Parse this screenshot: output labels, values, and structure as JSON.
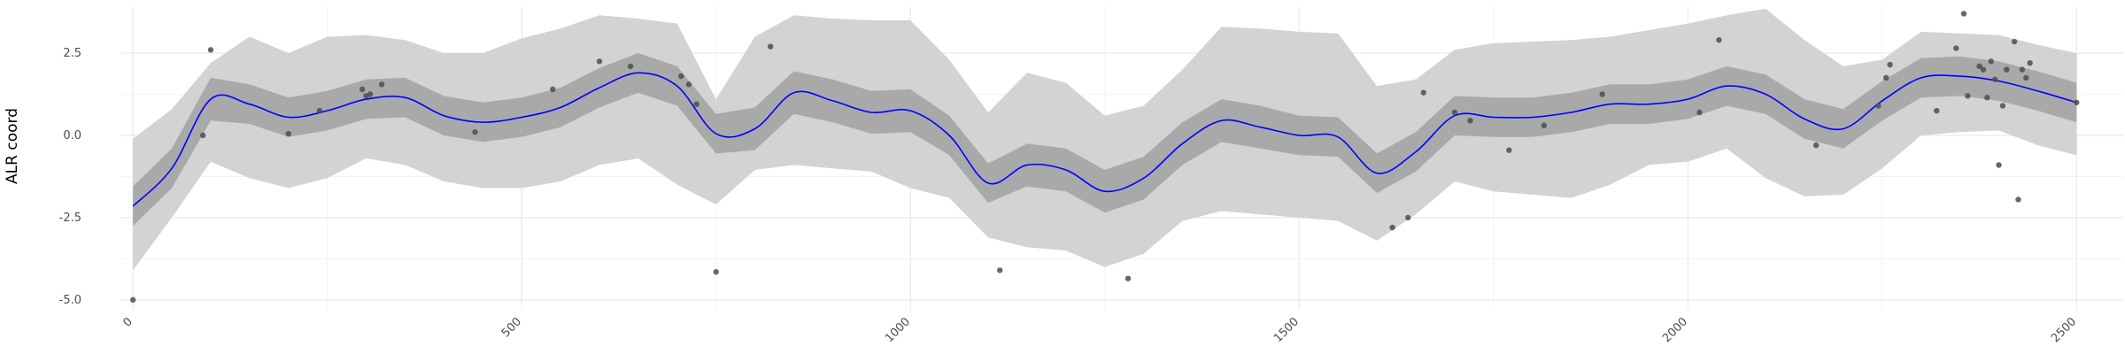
{
  "chart_data": {
    "type": "line",
    "ylabel": "ALR coord",
    "xlabel": "",
    "xlim": [
      -15,
      2560
    ],
    "ylim": [
      -5.3,
      3.9
    ],
    "x_ticks": [
      {
        "value": 0,
        "label": "0"
      },
      {
        "value": 500,
        "label": "500"
      },
      {
        "value": 1000,
        "label": "1000"
      },
      {
        "value": 1500,
        "label": "1500"
      },
      {
        "value": 2000,
        "label": "2000"
      },
      {
        "value": 2500,
        "label": "2500"
      }
    ],
    "y_ticks": [
      {
        "value": -5.0,
        "label": "-5.0"
      },
      {
        "value": -2.5,
        "label": "-2.5"
      },
      {
        "value": 0.0,
        "label": "0.0"
      },
      {
        "value": 2.5,
        "label": "2.5"
      }
    ],
    "grid": true,
    "colors": {
      "line": "#0000ff",
      "inner_band": "#a9a9a9",
      "outer_band": "#d3d3d3",
      "points": "#4d4d4d",
      "grid_major": "#e5e5e5",
      "grid_minor": "#f3f3f3"
    },
    "series": [
      {
        "type": "line",
        "x": [
          0,
          50,
          100,
          150,
          200,
          250,
          300,
          350,
          400,
          450,
          500,
          550,
          600,
          650,
          700,
          750,
          800,
          850,
          900,
          950,
          1000,
          1050,
          1100,
          1150,
          1200,
          1250,
          1300,
          1350,
          1400,
          1450,
          1500,
          1550,
          1600,
          1650,
          1700,
          1750,
          1800,
          1850,
          1900,
          1950,
          2000,
          2050,
          2100,
          2150,
          2200,
          2250,
          2300,
          2350,
          2400,
          2450,
          2500
        ],
        "y": [
          -2.15,
          -1.0,
          1.1,
          0.95,
          0.55,
          0.75,
          1.1,
          1.15,
          0.6,
          0.4,
          0.55,
          0.85,
          1.45,
          1.9,
          1.5,
          0.05,
          0.2,
          1.3,
          1.05,
          0.7,
          0.75,
          0.0,
          -1.45,
          -0.9,
          -1.05,
          -1.7,
          -1.3,
          -0.25,
          0.45,
          0.25,
          0.0,
          -0.05,
          -1.15,
          -0.5,
          0.6,
          0.55,
          0.55,
          0.7,
          0.95,
          0.95,
          1.1,
          1.5,
          1.25,
          0.5,
          0.2,
          1.05,
          1.75,
          1.8,
          1.65,
          1.35,
          1.0
        ]
      },
      {
        "type": "band",
        "x": [
          0,
          50,
          100,
          150,
          200,
          250,
          300,
          350,
          400,
          450,
          500,
          550,
          600,
          650,
          700,
          750,
          800,
          850,
          900,
          950,
          1000,
          1050,
          1100,
          1150,
          1200,
          1250,
          1300,
          1350,
          1400,
          1450,
          1500,
          1550,
          1600,
          1650,
          1700,
          1750,
          1800,
          1850,
          1900,
          1950,
          2000,
          2050,
          2100,
          2150,
          2200,
          2250,
          2300,
          2350,
          2400,
          2450,
          2500
        ],
        "lower": [
          -2.75,
          -1.6,
          0.45,
          0.35,
          -0.05,
          0.15,
          0.5,
          0.55,
          0.0,
          -0.2,
          -0.05,
          0.25,
          0.85,
          1.3,
          0.9,
          -0.55,
          -0.45,
          0.65,
          0.4,
          0.05,
          0.1,
          -0.6,
          -2.05,
          -1.55,
          -1.7,
          -2.35,
          -1.95,
          -0.9,
          -0.2,
          -0.4,
          -0.6,
          -0.65,
          -1.75,
          -1.1,
          0.0,
          -0.05,
          -0.05,
          0.1,
          0.35,
          0.35,
          0.5,
          0.9,
          0.65,
          -0.1,
          -0.4,
          0.45,
          1.15,
          1.2,
          1.05,
          0.75,
          0.4
        ],
        "upper": [
          -1.55,
          -0.4,
          1.75,
          1.55,
          1.15,
          1.35,
          1.7,
          1.75,
          1.2,
          1.0,
          1.15,
          1.45,
          2.05,
          2.5,
          2.1,
          0.65,
          0.85,
          1.95,
          1.7,
          1.35,
          1.4,
          0.6,
          -0.85,
          -0.25,
          -0.4,
          -1.05,
          -0.65,
          0.4,
          1.1,
          0.9,
          0.6,
          0.55,
          -0.55,
          0.1,
          1.2,
          1.15,
          1.15,
          1.3,
          1.55,
          1.55,
          1.7,
          2.1,
          1.85,
          1.1,
          0.8,
          1.65,
          2.35,
          2.4,
          2.25,
          1.95,
          1.6
        ]
      },
      {
        "type": "band",
        "x": [
          0,
          50,
          100,
          150,
          200,
          250,
          300,
          350,
          400,
          450,
          500,
          550,
          600,
          650,
          700,
          750,
          800,
          850,
          900,
          950,
          1000,
          1050,
          1100,
          1150,
          1200,
          1250,
          1300,
          1350,
          1400,
          1450,
          1500,
          1550,
          1600,
          1650,
          1700,
          1750,
          1800,
          1850,
          1900,
          1950,
          2000,
          2050,
          2100,
          2150,
          2200,
          2250,
          2300,
          2350,
          2400,
          2450,
          2500
        ],
        "lower": [
          -4.1,
          -2.5,
          -0.8,
          -1.3,
          -1.6,
          -1.3,
          -0.7,
          -0.9,
          -1.4,
          -1.6,
          -1.6,
          -1.4,
          -0.9,
          -0.7,
          -1.5,
          -2.1,
          -1.05,
          -0.9,
          -1.0,
          -1.1,
          -1.6,
          -1.9,
          -3.1,
          -3.4,
          -3.5,
          -4.0,
          -3.6,
          -2.6,
          -2.3,
          -2.4,
          -2.5,
          -2.6,
          -3.2,
          -2.4,
          -1.4,
          -1.7,
          -1.8,
          -1.9,
          -1.5,
          -0.9,
          -0.8,
          -0.4,
          -1.3,
          -1.85,
          -1.8,
          -1.0,
          0.0,
          0.1,
          0.15,
          -0.3,
          -0.6
        ],
        "upper": [
          -0.1,
          0.8,
          2.2,
          3.0,
          2.5,
          3.0,
          3.05,
          2.9,
          2.5,
          2.5,
          2.95,
          3.25,
          3.65,
          3.55,
          3.4,
          1.1,
          3.0,
          3.65,
          3.55,
          3.5,
          3.5,
          2.3,
          0.7,
          1.9,
          1.6,
          0.6,
          0.9,
          2.0,
          3.3,
          3.25,
          3.15,
          3.1,
          1.5,
          1.7,
          2.6,
          2.8,
          2.85,
          2.9,
          3.0,
          3.2,
          3.4,
          3.65,
          3.85,
          2.9,
          2.1,
          2.3,
          3.15,
          3.1,
          3.05,
          2.75,
          2.5
        ]
      },
      {
        "type": "scatter",
        "x": [
          0,
          90,
          100,
          200,
          240,
          295,
          300,
          305,
          320,
          440,
          540,
          600,
          640,
          705,
          715,
          725,
          750,
          820,
          1115,
          1280,
          1620,
          1640,
          1660,
          1700,
          1720,
          1770,
          1815,
          1890,
          2015,
          2040,
          2165,
          2245,
          2255,
          2260,
          2320,
          2345,
          2355,
          2360,
          2375,
          2380,
          2385,
          2390,
          2395,
          2400,
          2405,
          2410,
          2420,
          2425,
          2430,
          2435,
          2440,
          2500
        ],
        "y": [
          -5.0,
          0.0,
          2.6,
          0.05,
          0.75,
          1.4,
          1.2,
          1.25,
          1.55,
          0.1,
          1.4,
          2.25,
          2.1,
          1.8,
          1.55,
          0.95,
          -4.15,
          2.7,
          -4.1,
          -4.35,
          -2.8,
          -2.5,
          1.3,
          0.7,
          0.45,
          -0.45,
          0.3,
          1.25,
          0.7,
          2.9,
          -0.3,
          0.9,
          1.75,
          2.15,
          0.75,
          2.65,
          3.7,
          1.2,
          2.1,
          2.0,
          1.15,
          2.25,
          1.7,
          -0.9,
          0.9,
          2.0,
          2.85,
          -1.95,
          2.0,
          1.75,
          2.2,
          1.0
        ]
      }
    ]
  }
}
